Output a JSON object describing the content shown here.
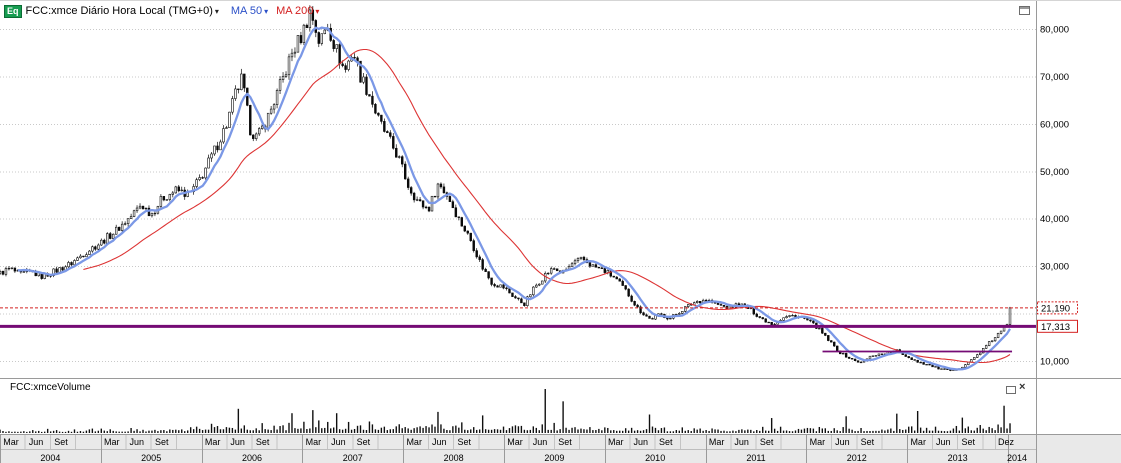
{
  "header": {
    "badge": "Eq",
    "title": "FCC:xmce Diário Hora Local (TMG+0)",
    "ma50_label": "MA 50",
    "ma200_label": "MA 200"
  },
  "volume_panel": {
    "title": "FCC:xmceVolume"
  },
  "icons": {
    "caret": "▾",
    "close": "×"
  },
  "chart_data": {
    "type": "candlestick",
    "instrument": "FCC:xmce",
    "timeframe": "Diário",
    "x_range": [
      2004.0,
      2014.02
    ],
    "years": [
      "2004",
      "2005",
      "2006",
      "2007",
      "2008",
      "2009",
      "2010",
      "2011",
      "2012",
      "2013",
      "2014"
    ],
    "month_labels": [
      "Mar",
      "Jun",
      "Set"
    ],
    "dec_label": "Dez",
    "y_axis": {
      "min": 6000,
      "max": 85000,
      "gridlines": [
        10000,
        20000,
        30000,
        40000,
        50000,
        60000,
        70000,
        80000
      ],
      "labels": [
        {
          "value": 80000,
          "text": "80,000"
        },
        {
          "value": 70000,
          "text": "70,000"
        },
        {
          "value": 60000,
          "text": "60,000"
        },
        {
          "value": 50000,
          "text": "50,000"
        },
        {
          "value": 40000,
          "text": "40,000"
        },
        {
          "value": 30000,
          "text": "30,000"
        },
        {
          "value": 10000,
          "text": "10,000"
        }
      ]
    },
    "last_price": 21190,
    "last_price_label": "21,190",
    "hline_main": {
      "value": 17313,
      "label": "17,313"
    },
    "hline_secondary": {
      "value": 12000,
      "from": 2012.16,
      "to": 2014.04
    },
    "price_keypoints": [
      [
        2004.0,
        28500
      ],
      [
        2004.1,
        29500
      ],
      [
        2004.2,
        28200
      ],
      [
        2004.3,
        28800
      ],
      [
        2004.42,
        27800
      ],
      [
        2004.55,
        29000
      ],
      [
        2004.7,
        30500
      ],
      [
        2004.85,
        33000
      ],
      [
        2005.0,
        35000
      ],
      [
        2005.15,
        37500
      ],
      [
        2005.3,
        40500
      ],
      [
        2005.4,
        43000
      ],
      [
        2005.5,
        41000
      ],
      [
        2005.62,
        44500
      ],
      [
        2005.75,
        46000
      ],
      [
        2005.88,
        45000
      ],
      [
        2006.0,
        49000
      ],
      [
        2006.12,
        54000
      ],
      [
        2006.25,
        60000
      ],
      [
        2006.33,
        66000
      ],
      [
        2006.4,
        69500
      ],
      [
        2006.48,
        59000
      ],
      [
        2006.55,
        57000
      ],
      [
        2006.65,
        61000
      ],
      [
        2006.78,
        68000
      ],
      [
        2006.9,
        75000
      ],
      [
        2007.0,
        79000
      ],
      [
        2007.08,
        84000
      ],
      [
        2007.17,
        77000
      ],
      [
        2007.25,
        81000
      ],
      [
        2007.33,
        76000
      ],
      [
        2007.42,
        71000
      ],
      [
        2007.5,
        75500
      ],
      [
        2007.58,
        70000
      ],
      [
        2007.67,
        66000
      ],
      [
        2007.75,
        61000
      ],
      [
        2007.85,
        57000
      ],
      [
        2007.95,
        53000
      ],
      [
        2008.05,
        47000
      ],
      [
        2008.15,
        43500
      ],
      [
        2008.25,
        42000
      ],
      [
        2008.35,
        47500
      ],
      [
        2008.45,
        44500
      ],
      [
        2008.55,
        40000
      ],
      [
        2008.67,
        35500
      ],
      [
        2008.78,
        30000
      ],
      [
        2008.88,
        26500
      ],
      [
        2009.0,
        25500
      ],
      [
        2009.1,
        23500
      ],
      [
        2009.2,
        22000
      ],
      [
        2009.3,
        25500
      ],
      [
        2009.42,
        28500
      ],
      [
        2009.5,
        29500
      ],
      [
        2009.58,
        28500
      ],
      [
        2009.68,
        30500
      ],
      [
        2009.78,
        31500
      ],
      [
        2009.88,
        30000
      ],
      [
        2010.0,
        29000
      ],
      [
        2010.1,
        27500
      ],
      [
        2010.22,
        24500
      ],
      [
        2010.33,
        21000
      ],
      [
        2010.45,
        18800
      ],
      [
        2010.55,
        19800
      ],
      [
        2010.65,
        19000
      ],
      [
        2010.78,
        21000
      ],
      [
        2010.9,
        22500
      ],
      [
        2011.0,
        23000
      ],
      [
        2011.1,
        22000
      ],
      [
        2011.22,
        21200
      ],
      [
        2011.33,
        22000
      ],
      [
        2011.45,
        20800
      ],
      [
        2011.55,
        19000
      ],
      [
        2011.67,
        17800
      ],
      [
        2011.78,
        19200
      ],
      [
        2011.88,
        19600
      ],
      [
        2012.0,
        18700
      ],
      [
        2012.1,
        17200
      ],
      [
        2012.2,
        14800
      ],
      [
        2012.33,
        11800
      ],
      [
        2012.45,
        10300
      ],
      [
        2012.55,
        9600
      ],
      [
        2012.65,
        11200
      ],
      [
        2012.78,
        11600
      ],
      [
        2012.9,
        12200
      ],
      [
        2013.0,
        10900
      ],
      [
        2013.1,
        9900
      ],
      [
        2013.22,
        9100
      ],
      [
        2013.33,
        8300
      ],
      [
        2013.45,
        7900
      ],
      [
        2013.55,
        8900
      ],
      [
        2013.65,
        10400
      ],
      [
        2013.75,
        12400
      ],
      [
        2013.85,
        14600
      ],
      [
        2013.93,
        16200
      ],
      [
        2013.99,
        17500
      ],
      [
        2014.02,
        21190
      ]
    ],
    "volume_profile": [
      [
        2004.0,
        0.1
      ],
      [
        2005.0,
        0.12
      ],
      [
        2005.8,
        0.18
      ],
      [
        2006.2,
        0.3
      ],
      [
        2006.8,
        0.26
      ],
      [
        2007.1,
        0.36
      ],
      [
        2007.6,
        0.3
      ],
      [
        2008.2,
        0.3
      ],
      [
        2008.9,
        0.26
      ],
      [
        2009.4,
        0.26
      ],
      [
        2010.0,
        0.22
      ],
      [
        2010.8,
        0.16
      ],
      [
        2011.5,
        0.16
      ],
      [
        2012.3,
        0.18
      ],
      [
        2012.95,
        0.22
      ],
      [
        2013.4,
        0.18
      ],
      [
        2013.9,
        0.3
      ],
      [
        2014.02,
        0.45
      ]
    ],
    "volume_spikes": [
      [
        2006.35,
        0.55
      ],
      [
        2006.9,
        0.45
      ],
      [
        2007.1,
        0.52
      ],
      [
        2007.35,
        0.45
      ],
      [
        2008.35,
        0.48
      ],
      [
        2008.8,
        0.4
      ],
      [
        2009.42,
        1.0
      ],
      [
        2009.6,
        0.72
      ],
      [
        2010.45,
        0.42
      ],
      [
        2011.65,
        0.34
      ],
      [
        2012.4,
        0.38
      ],
      [
        2012.9,
        0.44
      ],
      [
        2013.1,
        0.5
      ],
      [
        2013.55,
        0.35
      ],
      [
        2013.95,
        0.62
      ]
    ],
    "styles": {
      "ma50_color": "#7b98e6",
      "ma200_color": "#dd3434",
      "candle_color": "#0a0a0a",
      "grid_color": "#c9c9c9",
      "hline_color": "#750b75",
      "last_price_color": "#d42020",
      "volume_color": "#101010",
      "strip_bg": "#e9e9e9"
    }
  }
}
